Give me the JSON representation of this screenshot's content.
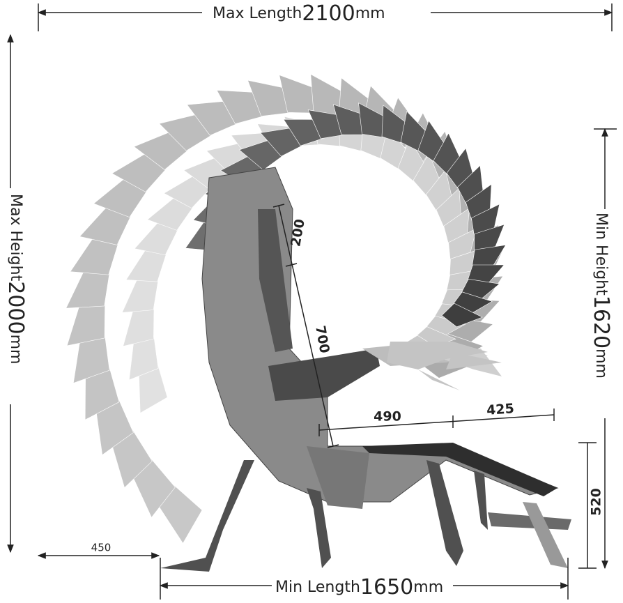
{
  "dimensions": {
    "max_length": {
      "label": "Max Length",
      "value": 2100,
      "unit": "mm"
    },
    "max_height": {
      "label": "Max Height",
      "value": 2000,
      "unit": "mm"
    },
    "min_height": {
      "label": "Min Height",
      "value": 1620,
      "unit": "mm"
    },
    "min_length": {
      "label": "Min Length",
      "value": 1650,
      "unit": "mm"
    },
    "offset": 450,
    "headrest": 200,
    "backrest": 700,
    "seat": 490,
    "legrest": 425,
    "seat_height": 520
  }
}
